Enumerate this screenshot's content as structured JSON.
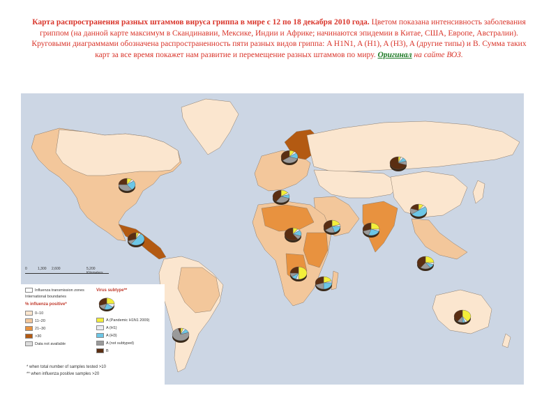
{
  "caption": {
    "bold_part": "Карта распространения разных штаммов вируса гриппа в мире с 12 по 18 декабря 2010 года.",
    "regular_part": " Цветом показана интенсивность заболевания гриппом (на данной карте максимум в Скандинавии, Мексике, Индии и Африке; начинаются эпидемии в Китае, США, Европе, Австралии). Круговыми диаграммами обозначена распространенность пяти разных видов гриппа: A H1N1, A (H1), A (H3), A (другие типы) и B. Сумма таких карт за все время покажет нам развитие и перемещение разных штаммов по миру. ",
    "link_text": "Оригинал",
    "link_suffix": " на сайте ВОЗ."
  },
  "scale": {
    "ticks": [
      "0",
      "1,300",
      "2,600",
      "5,200 Kilometers"
    ]
  },
  "legend": {
    "zones_label": "Influenza transmission zones",
    "boundaries_label": "International boundaries",
    "positive_title": "% influenza positive*",
    "ranges": [
      {
        "label": "0–10",
        "color": "#fbe6cf"
      },
      {
        "label": "11–20",
        "color": "#f3c79b"
      },
      {
        "label": "21–30",
        "color": "#e8923f"
      },
      {
        "label": ">30",
        "color": "#b35a12"
      },
      {
        "label": "Data not available",
        "color": "#dcdcdc"
      }
    ],
    "subtype_title": "Virus subtype**",
    "subtypes": [
      {
        "label": "A (Pandemic H1N1 2009)",
        "color": "#f3ee3a"
      },
      {
        "label": "A (H1)",
        "color": "#ececf2"
      },
      {
        "label": "A (H3)",
        "color": "#6cc6e6"
      },
      {
        "label": "A (not subtyped)",
        "color": "#9a9a9a"
      },
      {
        "label": "B",
        "color": "#5a2e12"
      }
    ]
  },
  "footnotes": [
    "*   when total number of samples tested >10",
    "**  when influenza positive samples >20"
  ],
  "pies": [
    {
      "place": "Scandinavia",
      "slices": [
        0.1,
        0.05,
        0.15,
        0.35,
        0.35
      ]
    },
    {
      "place": "Russia",
      "slices": [
        0.05,
        0.05,
        0.1,
        0.1,
        0.7
      ]
    },
    {
      "place": "USA",
      "slices": [
        0.1,
        0.05,
        0.25,
        0.35,
        0.25
      ]
    },
    {
      "place": "Europe",
      "slices": [
        0.15,
        0.05,
        0.1,
        0.3,
        0.4
      ]
    },
    {
      "place": "Mexico",
      "slices": [
        0.05,
        0.05,
        0.5,
        0.1,
        0.3
      ]
    },
    {
      "place": "North Africa",
      "slices": [
        0.1,
        0.05,
        0.15,
        0.1,
        0.6
      ]
    },
    {
      "place": "Middle East",
      "slices": [
        0.2,
        0.05,
        0.2,
        0.2,
        0.35
      ]
    },
    {
      "place": "India",
      "slices": [
        0.25,
        0.05,
        0.25,
        0.15,
        0.3
      ]
    },
    {
      "place": "China",
      "slices": [
        0.1,
        0.05,
        0.5,
        0.15,
        0.2
      ]
    },
    {
      "place": "West Africa",
      "slices": [
        0.5,
        0.05,
        0.1,
        0.1,
        0.25
      ]
    },
    {
      "place": "East Africa",
      "slices": [
        0.2,
        0.05,
        0.25,
        0.2,
        0.3
      ]
    },
    {
      "place": "Southeast Asia",
      "slices": [
        0.25,
        0.05,
        0.1,
        0.2,
        0.4
      ]
    },
    {
      "place": "Australia",
      "slices": [
        0.4,
        0.05,
        0.05,
        0.1,
        0.4
      ]
    },
    {
      "place": "South America",
      "slices": [
        0.05,
        0.05,
        0.1,
        0.75,
        0.05
      ]
    }
  ]
}
